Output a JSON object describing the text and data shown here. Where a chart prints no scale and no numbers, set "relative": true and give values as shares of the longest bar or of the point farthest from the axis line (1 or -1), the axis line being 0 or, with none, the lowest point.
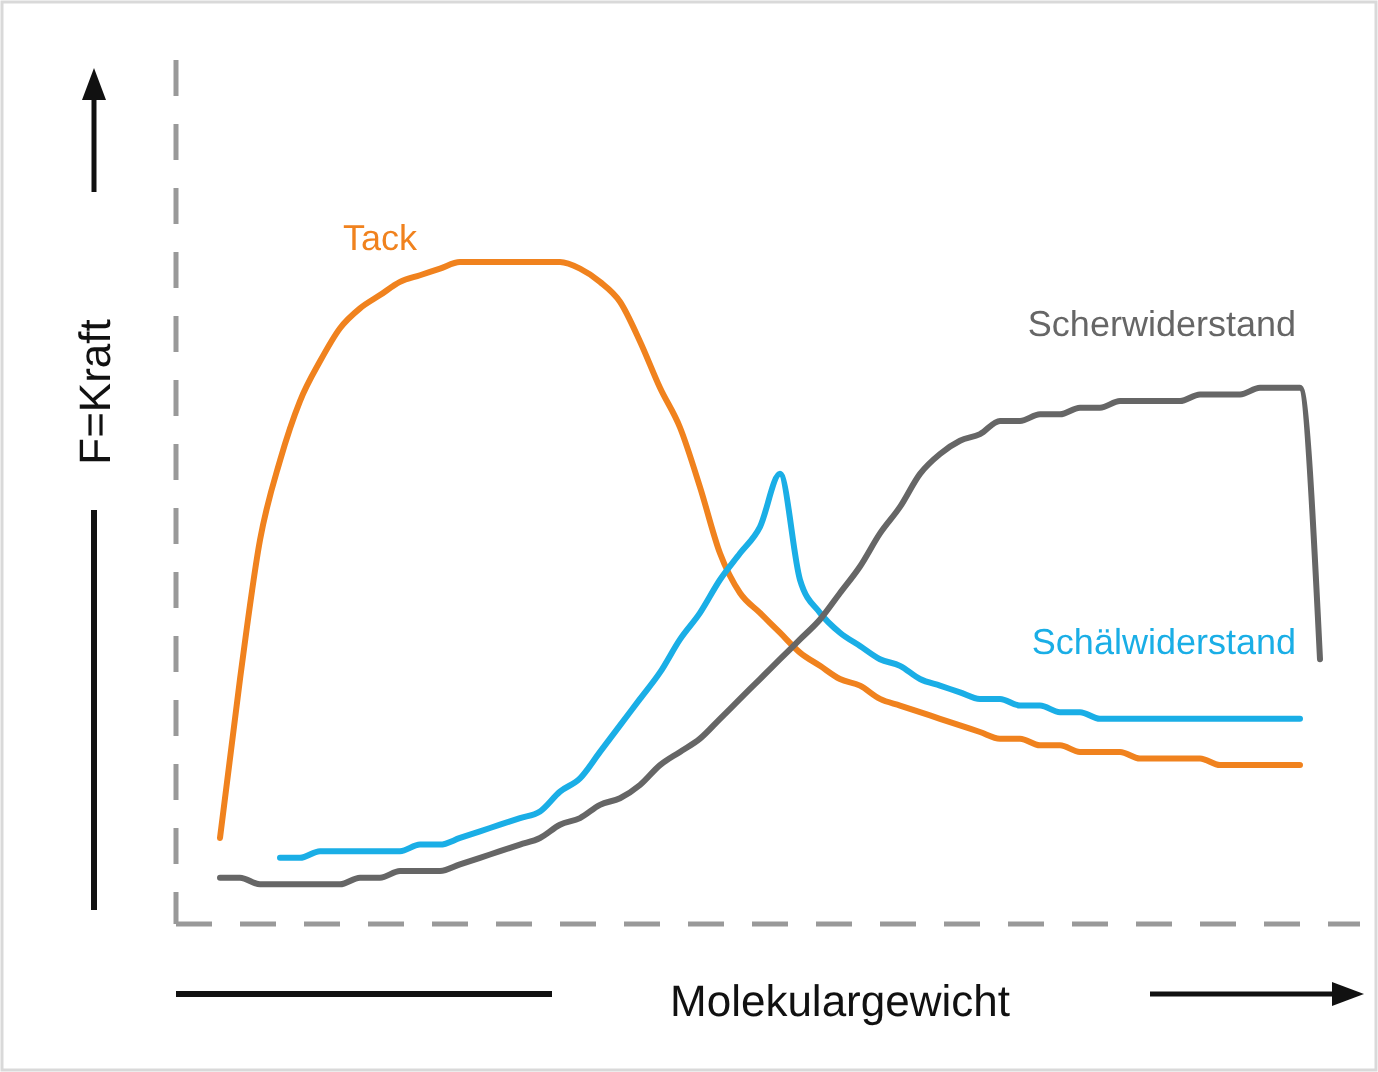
{
  "chart_data": {
    "type": "line",
    "xlabel": "Molekulargewicht",
    "ylabel": "F=Kraft",
    "relative": true,
    "legend": false,
    "categories": [
      null,
      null,
      null,
      null,
      null,
      null,
      null,
      null,
      null,
      null,
      null,
      null,
      null,
      null,
      null,
      null,
      null,
      null,
      null,
      null,
      null,
      null,
      null,
      null,
      null,
      null,
      null,
      null,
      null,
      null,
      null,
      null,
      null,
      null,
      null,
      null,
      null,
      null,
      null,
      null,
      null,
      null,
      null,
      null,
      null,
      null,
      null,
      null,
      null,
      null,
      null,
      null,
      null,
      null,
      null,
      null
    ],
    "series": [
      {
        "name": "Tack",
        "color": "#f0821e",
        "values": [
          0.13,
          0.37,
          0.58,
          0.7,
          0.79,
          0.85,
          0.9,
          0.93,
          0.95,
          0.97,
          0.98,
          0.99,
          1.0,
          1.0,
          1.0,
          1.0,
          1.0,
          1.0,
          0.99,
          0.97,
          0.94,
          0.88,
          0.81,
          0.75,
          0.66,
          0.56,
          0.5,
          0.47,
          0.44,
          0.41,
          0.39,
          0.37,
          0.36,
          0.34,
          0.33,
          0.32,
          0.31,
          0.3,
          0.29,
          0.28,
          0.28,
          0.27,
          0.27,
          0.26,
          0.26,
          0.26,
          0.25,
          0.25,
          0.25,
          0.25,
          0.24,
          0.24,
          0.24,
          0.24,
          0.24,
          null
        ]
      },
      {
        "name": "Schälwiderstand",
        "color": "#1aaee6",
        "values": [
          null,
          null,
          null,
          0.1,
          0.1,
          0.11,
          0.11,
          0.11,
          0.11,
          0.11,
          0.12,
          0.12,
          0.13,
          0.14,
          0.15,
          0.16,
          0.17,
          0.2,
          0.22,
          0.26,
          0.3,
          0.34,
          0.38,
          0.43,
          0.47,
          0.52,
          0.56,
          0.6,
          0.68,
          0.52,
          0.47,
          0.44,
          0.42,
          0.4,
          0.39,
          0.37,
          0.36,
          0.35,
          0.34,
          0.34,
          0.33,
          0.33,
          0.32,
          0.32,
          0.31,
          0.31,
          0.31,
          0.31,
          0.31,
          0.31,
          0.31,
          0.31,
          0.31,
          0.31,
          0.31,
          null
        ]
      },
      {
        "name": "Scherwiderstand",
        "color": "#666666",
        "values": [
          0.07,
          0.07,
          0.06,
          0.06,
          0.06,
          0.06,
          0.06,
          0.07,
          0.07,
          0.08,
          0.08,
          0.08,
          0.09,
          0.1,
          0.11,
          0.12,
          0.13,
          0.15,
          0.16,
          0.18,
          0.19,
          0.21,
          0.24,
          0.26,
          0.28,
          0.31,
          0.34,
          0.37,
          0.4,
          0.43,
          0.46,
          0.5,
          0.54,
          0.59,
          0.63,
          0.68,
          0.71,
          0.73,
          0.74,
          0.76,
          0.76,
          0.77,
          0.77,
          0.78,
          0.78,
          0.79,
          0.79,
          0.79,
          0.79,
          0.8,
          0.8,
          0.8,
          0.81,
          0.81,
          0.81,
          0.4
        ]
      }
    ]
  }
}
